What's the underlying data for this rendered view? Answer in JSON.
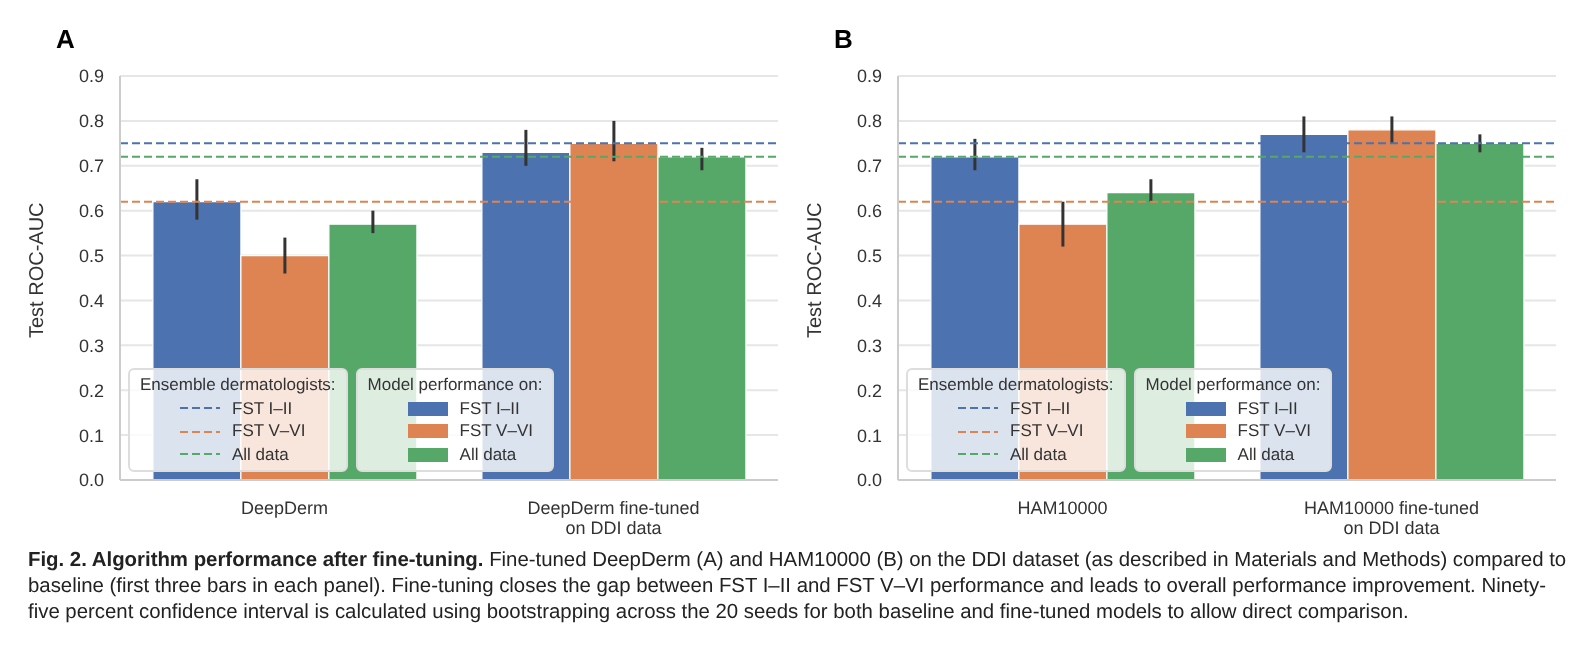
{
  "chart_data": [
    {
      "type": "bar",
      "title": "A",
      "ylabel": "Test ROC-AUC",
      "categories": [
        "DeepDerm",
        "DeepDerm fine-tuned\non DDI data"
      ],
      "series": [
        {
          "name": "FST I–II",
          "color": "#4c72b0",
          "values": [
            0.62,
            0.73
          ],
          "errors": [
            [
              0.58,
              0.67
            ],
            [
              0.7,
              0.78
            ]
          ]
        },
        {
          "name": "FST V–VI",
          "color": "#dd8452",
          "values": [
            0.5,
            0.75
          ],
          "errors": [
            [
              0.46,
              0.54
            ],
            [
              0.71,
              0.8
            ]
          ]
        },
        {
          "name": "All data",
          "color": "#55a868",
          "values": [
            0.57,
            0.72
          ],
          "errors": [
            [
              0.55,
              0.6
            ],
            [
              0.69,
              0.74
            ]
          ]
        }
      ],
      "ref_lines": [
        {
          "axis": "y",
          "value": 0.75,
          "label": "FST I–II",
          "color": "#4c72b0",
          "line_style": "dashed"
        },
        {
          "axis": "y",
          "value": 0.62,
          "label": "FST V–VI",
          "color": "#dd8452",
          "line_style": "dashed"
        },
        {
          "axis": "y",
          "value": 0.72,
          "label": "All data",
          "color": "#55a868",
          "line_style": "dashed"
        }
      ],
      "ylim": [
        0,
        0.9
      ],
      "yticks": [
        {
          "value": 0,
          "label": "0.0"
        },
        0.1,
        0.2,
        0.3,
        0.4,
        0.5,
        0.6,
        0.7,
        0.8,
        0.9
      ],
      "grid": "y",
      "legend": "bottom left",
      "legend_title": "Model performance on:",
      "annotations": [
        "Ensemble dermatologists:",
        "Fig. 2. Algorithm performance after fine-tuning.",
        "Fine-tuned DeepDerm (A) and HAM10000 (B) on the DDI dataset (as described in Materials and Methods) compared to baseline (first three bars in each panel). Fine-tuning closes the gap between FST I–II and FST V–VI performance and leads to overall performance improvement. Ninety-five percent confidence interval is calculated using bootstrapping across the 20 seeds for both baseline and fine-tuned models to allow direct comparison."
      ]
    },
    {
      "type": "bar",
      "title": "B",
      "ylabel": "Test ROC-AUC",
      "categories": [
        "HAM10000",
        "HAM10000 fine-tuned\non DDI data"
      ],
      "series": [
        {
          "name": "FST I–II",
          "color": "#4c72b0",
          "values": [
            0.72,
            0.77
          ],
          "errors": [
            [
              0.69,
              0.76
            ],
            [
              0.73,
              0.81
            ]
          ]
        },
        {
          "name": "FST V–VI",
          "color": "#dd8452",
          "values": [
            0.57,
            0.78
          ],
          "errors": [
            [
              0.52,
              0.62
            ],
            [
              0.75,
              0.81
            ]
          ]
        },
        {
          "name": "All data",
          "color": "#55a868",
          "values": [
            0.64,
            0.75
          ],
          "errors": [
            [
              0.62,
              0.67
            ],
            [
              0.73,
              0.77
            ]
          ]
        }
      ],
      "ref_lines": [
        {
          "axis": "y",
          "value": 0.75,
          "label": "FST I–II",
          "color": "#4c72b0",
          "line_style": "dashed"
        },
        {
          "axis": "y",
          "value": 0.62,
          "label": "FST V–VI",
          "color": "#dd8452",
          "line_style": "dashed"
        },
        {
          "axis": "y",
          "value": 0.72,
          "label": "All data",
          "color": "#55a868",
          "line_style": "dashed"
        }
      ],
      "ylim": [
        0,
        0.9
      ],
      "yticks": [
        {
          "value": 0,
          "label": "0.0"
        },
        0.1,
        0.2,
        0.3,
        0.4,
        0.5,
        0.6,
        0.7,
        0.8,
        0.9
      ],
      "grid": "y",
      "legend": "bottom left",
      "legend_title": "Model performance on:",
      "annotations": [
        "Ensemble dermatologists:"
      ]
    }
  ]
}
